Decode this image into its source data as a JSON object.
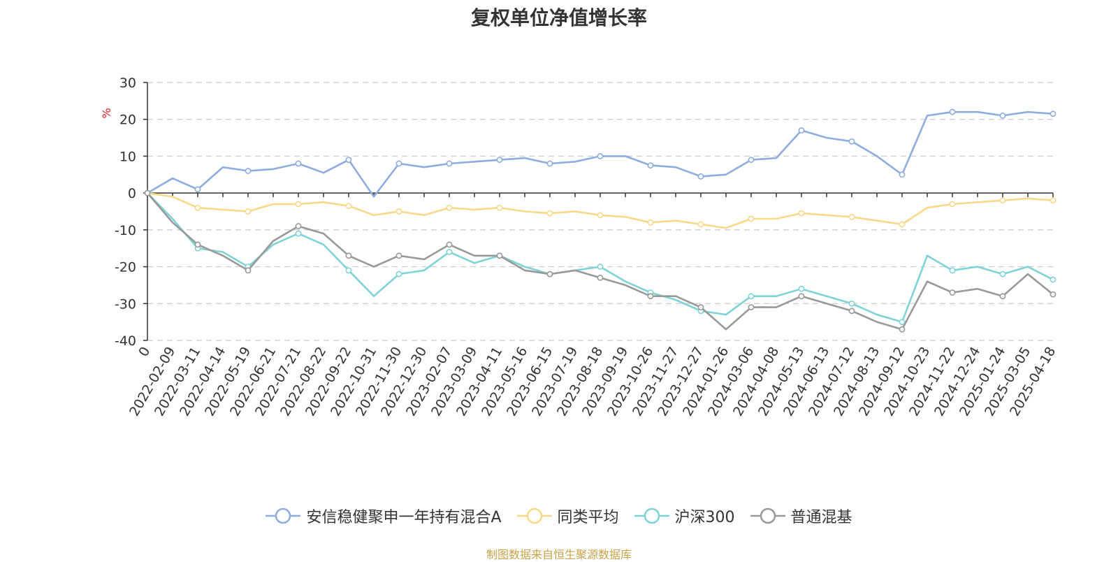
{
  "chart_data": {
    "type": "line",
    "title": "复权单位净值增长率",
    "ylabel": "%",
    "ylim": [
      -40,
      30
    ],
    "yticks": [
      "30",
      "20",
      "10",
      "0",
      "-10",
      "-20",
      "-30",
      "-40"
    ],
    "grid": true,
    "legend_position": "bottom",
    "categories": [
      "0",
      "2022-02-09",
      "2022-03-11",
      "2022-04-14",
      "2022-05-19",
      "2022-06-21",
      "2022-07-21",
      "2022-08-22",
      "2022-09-22",
      "2022-10-31",
      "2022-11-30",
      "2022-12-30",
      "2023-02-07",
      "2023-03-09",
      "2023-04-11",
      "2023-05-16",
      "2023-06-15",
      "2023-07-19",
      "2023-08-18",
      "2023-09-19",
      "2023-10-26",
      "2023-11-27",
      "2023-12-27",
      "2024-01-26",
      "2024-03-06",
      "2024-04-08",
      "2024-05-13",
      "2024-06-13",
      "2024-07-12",
      "2024-08-13",
      "2024-09-12",
      "2024-10-23",
      "2024-11-22",
      "2024-12-24",
      "2025-01-24",
      "2025-03-05",
      "2025-04-18"
    ],
    "series": [
      {
        "name": "安信稳健聚申一年持有混合A",
        "color": "#8eadde",
        "values": [
          0,
          4,
          1,
          7,
          6,
          6.5,
          8,
          5.5,
          9,
          -1,
          8,
          7,
          8,
          8.5,
          9,
          9.5,
          8,
          8.5,
          10,
          10,
          7.5,
          7,
          4.5,
          5,
          9,
          9.5,
          17,
          15,
          14,
          10,
          5,
          21,
          22,
          22,
          21,
          22,
          21.5
        ]
      },
      {
        "name": "同类平均",
        "color": "#fbd78a",
        "values": [
          0,
          -1,
          -4,
          -4.5,
          -5,
          -3,
          -3,
          -2.5,
          -3.5,
          -6,
          -5,
          -6,
          -4,
          -4.5,
          -4,
          -5,
          -5.5,
          -5,
          -6,
          -6.5,
          -8,
          -7.5,
          -8.5,
          -9.5,
          -7,
          -7,
          -5.5,
          -6,
          -6.5,
          -7.5,
          -8.5,
          -4,
          -3,
          -2.5,
          -2,
          -1.5,
          -2
        ]
      },
      {
        "name": "沪深300",
        "color": "#7fd3d6",
        "values": [
          0,
          -7,
          -15,
          -16,
          -20,
          -14,
          -11,
          -14,
          -21,
          -28,
          -22,
          -21,
          -16,
          -19,
          -17,
          -20,
          -22,
          -21,
          -20,
          -24,
          -27,
          -29,
          -32,
          -33,
          -28,
          -28,
          -26,
          -28,
          -30,
          -33,
          -35,
          -17,
          -21,
          -20,
          -22,
          -20,
          -23.5
        ]
      },
      {
        "name": "普通混基",
        "color": "#999999",
        "values": [
          0,
          -8,
          -14,
          -17,
          -21,
          -13,
          -9,
          -11,
          -17,
          -20,
          -17,
          -18,
          -14,
          -17,
          -17,
          -21,
          -22,
          -21,
          -23,
          -25,
          -28,
          -28,
          -31,
          -37,
          -31,
          -31,
          -28,
          -30,
          -32,
          -35,
          -37,
          -24,
          -27,
          -26,
          -28,
          -22,
          -27.5
        ]
      }
    ]
  },
  "source_note": "制图数据来自恒生聚源数据库"
}
